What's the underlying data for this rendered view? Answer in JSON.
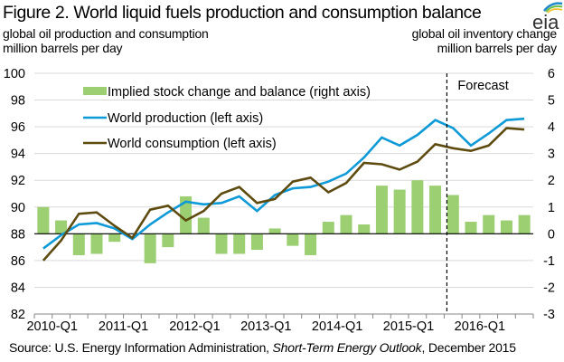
{
  "header": {
    "title": "Figure 2. World liquid fuels production and consumption balance",
    "logo_text": "eia",
    "left_axis_label_line1": "global oil production and consumption",
    "left_axis_label_line2": "million barrels per day",
    "right_axis_label_line1": "global oil inventory change",
    "right_axis_label_line2": "million barrels per day"
  },
  "footer": {
    "source_prefix": "Source: U.S. Energy Information Administration, ",
    "source_title": "Short-Term Energy Outlook",
    "source_suffix": ", December 2015"
  },
  "colors": {
    "production": "#0E9AD7",
    "consumption": "#5E4B10",
    "stock_bars": "#9BCF72",
    "gridline": "#D9D9D9",
    "zero_line": "#000000"
  },
  "chart_data": {
    "type": "bar+line",
    "title": "Figure 2. World liquid fuels production and consumption balance",
    "xlabel": "",
    "ylabel_left": "global oil production and consumption, million barrels per day",
    "ylabel_right": "global oil inventory change, million barrels per day",
    "ylim_left": [
      82,
      100
    ],
    "ylim_right": [
      -3,
      6
    ],
    "yticks_left": [
      "82",
      "84",
      "86",
      "88",
      "90",
      "92",
      "94",
      "96",
      "98",
      "100"
    ],
    "yticks_right": [
      "-3",
      "-2",
      "-1",
      "0",
      "1",
      "2",
      "3",
      "4",
      "5",
      "6"
    ],
    "x_tick_labels": [
      "2010-Q1",
      "2011-Q1",
      "2012-Q1",
      "2013-Q1",
      "2014-Q1",
      "2015-Q1",
      "2016-Q1"
    ],
    "categories": [
      "2010-Q1",
      "2010-Q2",
      "2010-Q3",
      "2010-Q4",
      "2011-Q1",
      "2011-Q2",
      "2011-Q3",
      "2011-Q4",
      "2012-Q1",
      "2012-Q2",
      "2012-Q3",
      "2012-Q4",
      "2013-Q1",
      "2013-Q2",
      "2013-Q3",
      "2013-Q4",
      "2014-Q1",
      "2014-Q2",
      "2014-Q3",
      "2014-Q4",
      "2015-Q1",
      "2015-Q2",
      "2015-Q3",
      "2015-Q4",
      "2016-Q1",
      "2016-Q2",
      "2016-Q3",
      "2016-Q4"
    ],
    "grid": true,
    "legend_position": "top-left",
    "forecast_label": "Forecast",
    "forecast_start": "2015-Q4",
    "series": [
      {
        "name": "Implied stock change and balance (right axis)",
        "type": "bar",
        "axis": "right",
        "values": [
          1.0,
          0.5,
          -0.8,
          -0.75,
          -0.3,
          0.0,
          -1.1,
          -0.5,
          1.4,
          0.6,
          -0.75,
          -0.75,
          -0.6,
          0.2,
          -0.45,
          -0.8,
          0.45,
          0.7,
          0.35,
          1.8,
          1.65,
          2.0,
          1.8,
          1.45,
          0.45,
          0.7,
          0.5,
          0.7
        ]
      },
      {
        "name": "World production (left axis)",
        "type": "line",
        "axis": "left",
        "values": [
          86.9,
          87.9,
          88.7,
          88.8,
          88.4,
          87.6,
          88.7,
          89.6,
          90.4,
          90.2,
          90.3,
          90.8,
          89.7,
          90.9,
          91.4,
          91.5,
          91.9,
          92.5,
          93.7,
          95.2,
          94.6,
          95.4,
          96.5,
          95.9,
          94.6,
          95.5,
          96.5,
          96.6
        ]
      },
      {
        "name": "World consumption (left axis)",
        "type": "line",
        "axis": "left",
        "values": [
          86.0,
          87.5,
          89.5,
          89.6,
          88.6,
          87.7,
          89.8,
          90.1,
          89.0,
          89.7,
          91.0,
          91.5,
          90.3,
          90.6,
          91.9,
          92.2,
          91.1,
          91.8,
          93.3,
          93.2,
          92.8,
          93.4,
          94.7,
          94.4,
          94.2,
          94.6,
          95.9,
          95.8
        ]
      }
    ]
  }
}
